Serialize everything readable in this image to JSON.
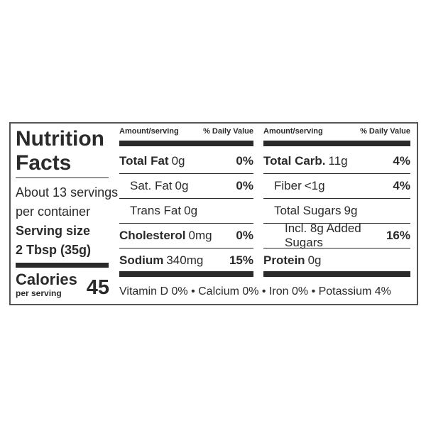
{
  "title_line1": "Nutrition",
  "title_line2": "Facts",
  "servings_line1": "About 13 servings",
  "servings_line2": "per container",
  "serving_size_label": "Serving size",
  "serving_size": "2 Tbsp (35g)",
  "calories_label": "Calories",
  "calories_sub": "per serving",
  "calories": 45,
  "columns": [
    {
      "header_amount": "Amount/serving",
      "header_dv": "% Daily Value",
      "rows": [
        {
          "name": "Total Fat",
          "amount": "0g",
          "dv": "0%"
        },
        {
          "name": "Sat. Fat",
          "amount": "0g",
          "dv": "0%"
        },
        {
          "name": "Trans Fat",
          "amount": "0g"
        },
        {
          "name": "Cholesterol",
          "amount": "0mg",
          "dv": "0%"
        },
        {
          "name": "Sodium",
          "amount": "340mg",
          "dv": "15%"
        }
      ]
    },
    {
      "header_amount": "Amount/serving",
      "header_dv": "% Daily Value",
      "rows": [
        {
          "name": "Total Carb.",
          "amount": "11g",
          "dv": "4%"
        },
        {
          "name": "Fiber",
          "amount": "<1g",
          "dv": "4%"
        },
        {
          "name": "Total Sugars",
          "amount": "9g"
        },
        {
          "name": "Incl. 8g Added Sugars",
          "dv": "16%"
        },
        {
          "name": "Protein",
          "amount": "0g"
        }
      ]
    }
  ],
  "vitamins": "Vitamin D 0% • Calcium 0% • Iron 0% • Potassium 4%"
}
